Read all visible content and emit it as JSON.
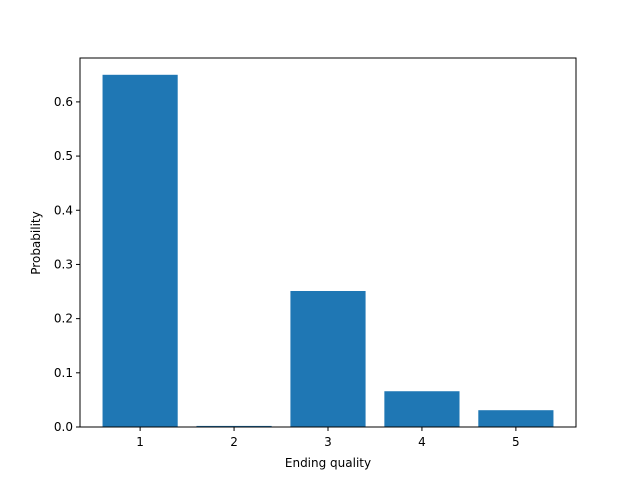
{
  "chart_data": {
    "type": "bar",
    "x_label": "Ending quality",
    "y_label": "Probability",
    "x": [
      1,
      2,
      3,
      4,
      5
    ],
    "values": [
      0.65,
      0.002,
      0.251,
      0.066,
      0.031
    ],
    "color": "#1f77b4",
    "bar_width": 0.8,
    "xlim": [
      0.36,
      5.64
    ],
    "xticks": [
      1,
      2,
      3,
      4,
      5
    ],
    "ylim": [
      0,
      0.681
    ],
    "yticks": [
      {
        "value": 0,
        "label": "0.0"
      },
      0.1,
      0.2,
      0.3,
      0.4,
      0.5,
      0.6
    ],
    "grid": false
  }
}
